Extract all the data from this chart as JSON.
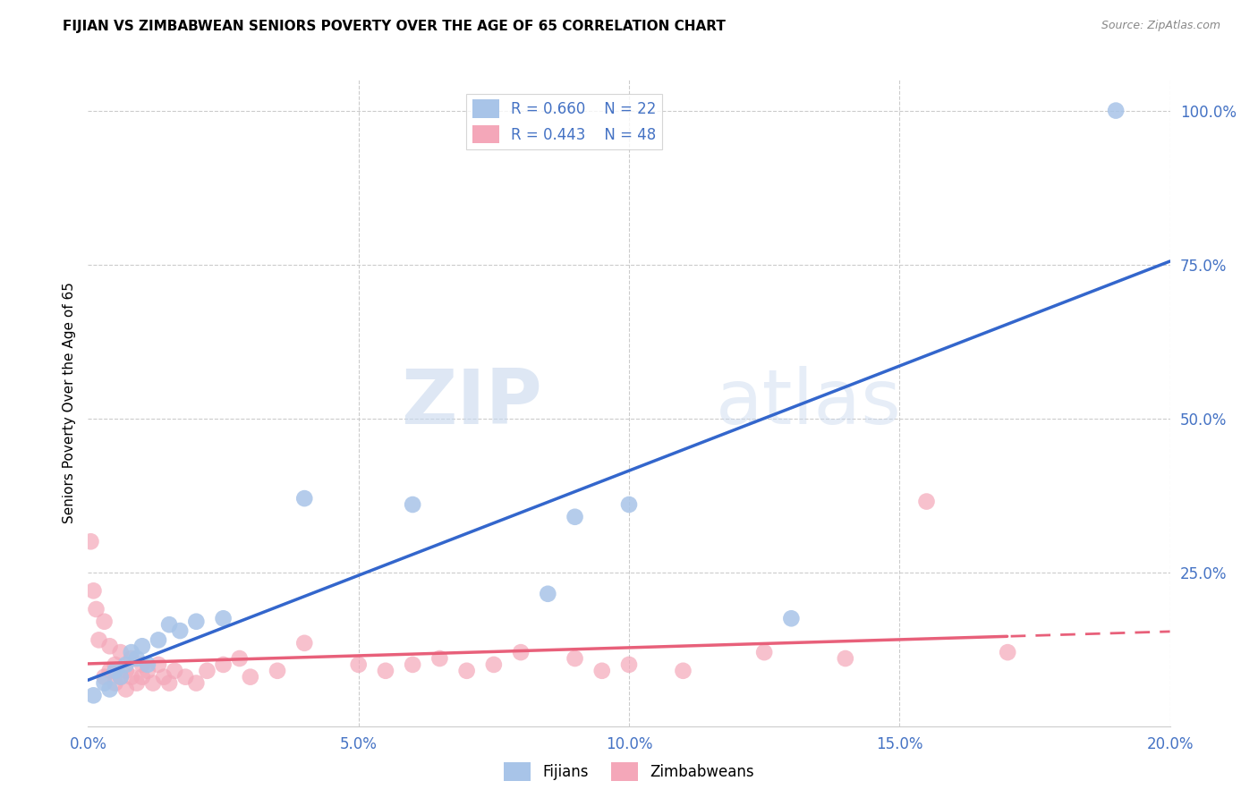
{
  "title": "FIJIAN VS ZIMBABWEAN SENIORS POVERTY OVER THE AGE OF 65 CORRELATION CHART",
  "source": "Source: ZipAtlas.com",
  "ylabel": "Seniors Poverty Over the Age of 65",
  "xlim": [
    0.0,
    0.2
  ],
  "ylim": [
    0.0,
    1.05
  ],
  "xtick_labels": [
    "0.0%",
    "",
    "5.0%",
    "",
    "10.0%",
    "",
    "15.0%",
    "",
    "20.0%"
  ],
  "xtick_vals": [
    0.0,
    0.025,
    0.05,
    0.075,
    0.1,
    0.125,
    0.15,
    0.175,
    0.2
  ],
  "ytick_labels": [
    "25.0%",
    "50.0%",
    "75.0%",
    "100.0%"
  ],
  "ytick_vals": [
    0.25,
    0.5,
    0.75,
    1.0
  ],
  "fijian_color": "#a8c4e8",
  "zimbabwean_color": "#f4a7b9",
  "fijian_line_color": "#3366cc",
  "zimbabwean_line_color": "#e8607a",
  "legend_fijian_R": "R = 0.660",
  "legend_fijian_N": "N = 22",
  "legend_zimbabwean_R": "R = 0.443",
  "legend_zimbabwean_N": "N = 48",
  "legend_label_fijians": "Fijians",
  "legend_label_zimbabweans": "Zimbabweans",
  "watermark_zip": "ZIP",
  "watermark_atlas": "atlas",
  "background_color": "#ffffff",
  "grid_color": "#cccccc",
  "fijian_x": [
    0.001,
    0.003,
    0.004,
    0.005,
    0.006,
    0.007,
    0.008,
    0.009,
    0.01,
    0.011,
    0.013,
    0.015,
    0.017,
    0.02,
    0.025,
    0.04,
    0.06,
    0.085,
    0.09,
    0.1,
    0.13,
    0.19
  ],
  "fijian_y": [
    0.05,
    0.07,
    0.06,
    0.09,
    0.08,
    0.1,
    0.12,
    0.11,
    0.13,
    0.1,
    0.14,
    0.165,
    0.155,
    0.17,
    0.175,
    0.37,
    0.36,
    0.215,
    0.34,
    0.36,
    0.175,
    1.0
  ],
  "zimbabwean_x": [
    0.0005,
    0.001,
    0.0015,
    0.002,
    0.003,
    0.003,
    0.004,
    0.004,
    0.005,
    0.005,
    0.006,
    0.006,
    0.007,
    0.007,
    0.008,
    0.008,
    0.009,
    0.01,
    0.01,
    0.011,
    0.012,
    0.013,
    0.014,
    0.015,
    0.016,
    0.018,
    0.02,
    0.022,
    0.025,
    0.028,
    0.03,
    0.035,
    0.04,
    0.05,
    0.055,
    0.06,
    0.065,
    0.07,
    0.075,
    0.08,
    0.09,
    0.095,
    0.1,
    0.11,
    0.125,
    0.14,
    0.155,
    0.17
  ],
  "zimbabwean_y": [
    0.3,
    0.22,
    0.19,
    0.14,
    0.08,
    0.17,
    0.09,
    0.13,
    0.07,
    0.1,
    0.08,
    0.12,
    0.06,
    0.09,
    0.08,
    0.11,
    0.07,
    0.1,
    0.08,
    0.09,
    0.07,
    0.1,
    0.08,
    0.07,
    0.09,
    0.08,
    0.07,
    0.09,
    0.1,
    0.11,
    0.08,
    0.09,
    0.135,
    0.1,
    0.09,
    0.1,
    0.11,
    0.09,
    0.1,
    0.12,
    0.11,
    0.09,
    0.1,
    0.09,
    0.12,
    0.11,
    0.365,
    0.12
  ],
  "marker_size": 180
}
